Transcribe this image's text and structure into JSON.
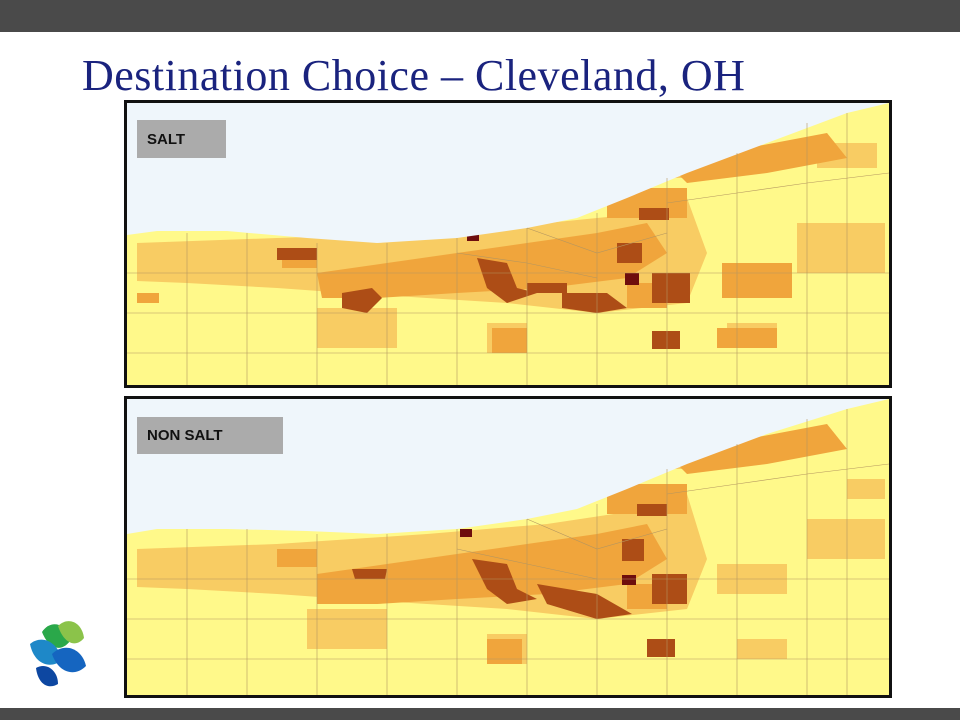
{
  "slide": {
    "title": "Destination Choice – Cleveland, OH"
  },
  "maps": [
    {
      "label": "SALT"
    },
    {
      "label": "NON SALT"
    }
  ],
  "colors": {
    "lake": "#eff6fb",
    "class1": "#fff98a",
    "class2": "#f8cc63",
    "class3": "#f0a53c",
    "class4": "#ad4d16",
    "class5": "#6e0d0d",
    "boundary": "#b49660",
    "title": "#1a237e",
    "bars": "#4a4a4a",
    "label_bg": "#ababab"
  },
  "logo": {
    "icon": "leaf-logo-icon"
  }
}
